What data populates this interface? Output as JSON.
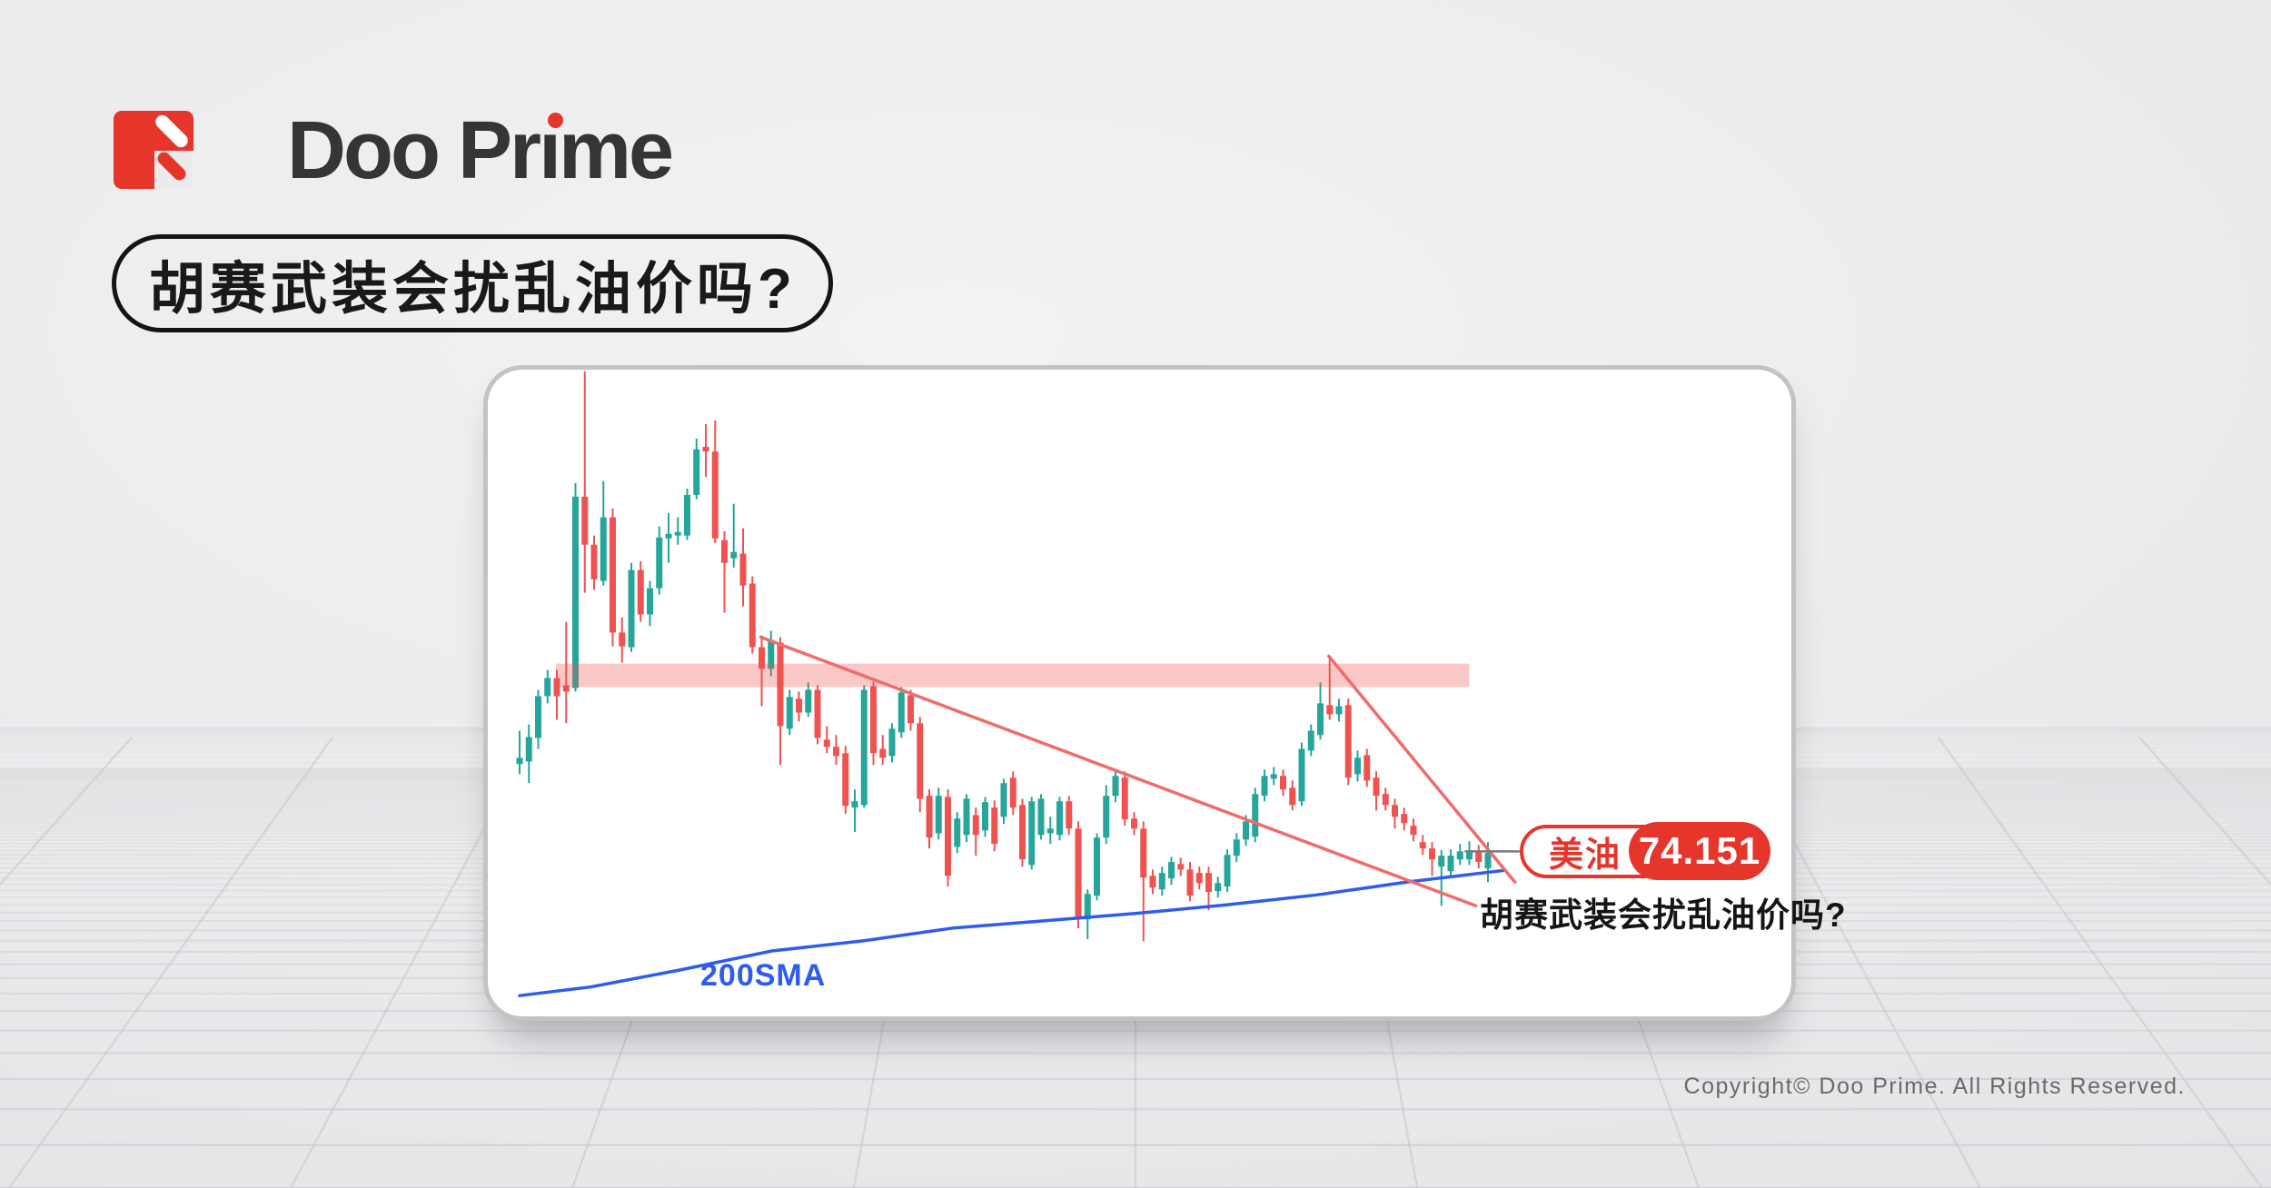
{
  "logo": {
    "brand": "Doo Prime",
    "mark_color": "#e6352b",
    "text_color": "#373435",
    "accent_dot": "#e6352b"
  },
  "headline": {
    "text": "胡赛武装会扰乱油价吗?"
  },
  "card": {
    "caption": "胡赛武装会扰乱油价吗?"
  },
  "footer": {
    "copyright": "Copyright© Doo Prime. All Rights Reserved."
  },
  "chart_data": {
    "type": "candlestick",
    "price_label": {
      "symbol": "美油",
      "value": "74.151"
    },
    "sma_label": "200SMA",
    "ylim": [
      68.48,
      90.94
    ],
    "grid": false,
    "colors": {
      "up": "#26a69a",
      "down": "#ef5350",
      "sma": "#2e5cf0",
      "trendline": "#f26b6b",
      "zone": "rgba(239,83,80,0.32)",
      "connector": "#7a7a7a"
    },
    "resistance_zone": {
      "price_top": 80.73,
      "price_bottom": 79.92,
      "index_start": 3.9,
      "index_end": 102
    },
    "trendlines": [
      {
        "i1": 25.9,
        "p1": 81.65,
        "i2": 102.7,
        "p2": 72.32
      },
      {
        "i1": 86.9,
        "p1": 80.99,
        "i2": 106.9,
        "p2": 73.14
      }
    ],
    "connector": {
      "i1": 101.5,
      "i2": 107.4,
      "price": 74.21
    },
    "sma200": [
      [
        0,
        69.2
      ],
      [
        7.6,
        69.5
      ],
      [
        17.4,
        70.1
      ],
      [
        27.1,
        70.75
      ],
      [
        36.9,
        71.1
      ],
      [
        46.6,
        71.55
      ],
      [
        56.4,
        71.8
      ],
      [
        66.1,
        72.05
      ],
      [
        75.9,
        72.35
      ],
      [
        85.7,
        72.7
      ],
      [
        95.4,
        73.15
      ],
      [
        105.7,
        73.55
      ]
    ],
    "candles": [
      [
        77.24,
        78.4,
        76.89,
        77.46
      ],
      [
        77.33,
        78.62,
        76.58,
        78.18
      ],
      [
        78.15,
        79.82,
        77.77,
        79.6
      ],
      [
        79.6,
        80.51,
        79.35,
        80.23
      ],
      [
        80.23,
        80.51,
        78.78,
        79.6
      ],
      [
        79.98,
        82.18,
        78.66,
        79.76
      ],
      [
        79.88,
        87.0,
        79.76,
        86.53
      ],
      [
        86.53,
        90.88,
        83.19,
        84.86
      ],
      [
        84.86,
        85.18,
        83.29,
        83.66
      ],
      [
        83.6,
        87.07,
        83.44,
        85.81
      ],
      [
        85.81,
        86.12,
        81.33,
        81.81
      ],
      [
        81.81,
        82.34,
        80.77,
        81.33
      ],
      [
        81.3,
        84.23,
        81.14,
        83.98
      ],
      [
        83.98,
        84.29,
        82.18,
        82.44
      ],
      [
        82.44,
        83.6,
        82.03,
        83.35
      ],
      [
        83.35,
        85.49,
        83.13,
        85.11
      ],
      [
        85.08,
        85.96,
        84.23,
        85.24
      ],
      [
        85.18,
        85.81,
        84.86,
        85.3
      ],
      [
        85.18,
        86.81,
        85.02,
        86.59
      ],
      [
        86.59,
        88.55,
        86.44,
        88.17
      ],
      [
        88.26,
        89.05,
        87.22,
        88.1
      ],
      [
        88.1,
        89.18,
        84.92,
        85.08
      ],
      [
        85.02,
        85.33,
        82.5,
        84.23
      ],
      [
        84.39,
        86.28,
        84.07,
        84.61
      ],
      [
        84.55,
        85.43,
        82.72,
        83.44
      ],
      [
        83.51,
        83.76,
        81.08,
        81.3
      ],
      [
        81.3,
        81.71,
        79.25,
        80.55
      ],
      [
        80.55,
        81.87,
        80.29,
        81.55
      ],
      [
        81.46,
        81.65,
        77.21,
        78.56
      ],
      [
        78.47,
        79.82,
        78.25,
        79.57
      ],
      [
        79.51,
        79.76,
        78.72,
        79.03
      ],
      [
        79.03,
        80.08,
        78.88,
        79.82
      ],
      [
        79.82,
        79.98,
        77.93,
        78.15
      ],
      [
        78.09,
        78.56,
        77.62,
        77.84
      ],
      [
        77.84,
        78.25,
        77.21,
        77.52
      ],
      [
        77.62,
        77.87,
        75.51,
        75.79
      ],
      [
        75.73,
        76.36,
        74.88,
        75.95
      ],
      [
        75.82,
        79.98,
        75.73,
        79.82
      ],
      [
        79.95,
        80.11,
        77.21,
        77.62
      ],
      [
        77.77,
        78.25,
        77.21,
        77.46
      ],
      [
        77.52,
        78.66,
        77.3,
        78.47
      ],
      [
        78.34,
        79.92,
        78.15,
        79.73
      ],
      [
        79.63,
        79.82,
        78.4,
        78.66
      ],
      [
        78.66,
        78.88,
        75.57,
        76.04
      ],
      [
        76.14,
        76.36,
        74.31,
        74.69
      ],
      [
        74.84,
        76.42,
        74.62,
        76.14
      ],
      [
        76.1,
        76.36,
        72.99,
        73.36
      ],
      [
        74.37,
        75.57,
        74.15,
        75.35
      ],
      [
        74.78,
        76.2,
        74.53,
        76.04
      ],
      [
        75.47,
        75.73,
        74.06,
        74.78
      ],
      [
        74.94,
        76.1,
        74.72,
        75.92
      ],
      [
        75.73,
        75.98,
        74.21,
        74.47
      ],
      [
        75.41,
        76.73,
        75.16,
        76.58
      ],
      [
        76.77,
        76.99,
        75.47,
        75.73
      ],
      [
        75.82,
        76.04,
        73.68,
        73.93
      ],
      [
        73.74,
        76.1,
        73.58,
        75.95
      ],
      [
        74.78,
        76.2,
        74.62,
        76.04
      ],
      [
        74.84,
        75.41,
        74.47,
        75.0
      ],
      [
        74.78,
        76.1,
        74.59,
        75.95
      ],
      [
        75.95,
        76.14,
        74.78,
        75.0
      ],
      [
        75.0,
        75.25,
        71.54,
        71.85
      ],
      [
        71.85,
        72.89,
        71.16,
        72.73
      ],
      [
        72.67,
        74.84,
        72.51,
        74.69
      ],
      [
        74.69,
        76.51,
        74.47,
        76.14
      ],
      [
        76.14,
        77.08,
        75.92,
        76.83
      ],
      [
        76.77,
        76.99,
        75.1,
        75.32
      ],
      [
        75.35,
        75.57,
        74.78,
        75.0
      ],
      [
        75.0,
        75.25,
        71.09,
        73.3
      ],
      [
        73.36,
        73.58,
        72.73,
        72.95
      ],
      [
        72.89,
        73.68,
        72.67,
        73.46
      ],
      [
        73.27,
        74.02,
        73.05,
        73.84
      ],
      [
        73.77,
        73.99,
        73.36,
        73.58
      ],
      [
        73.58,
        73.84,
        72.48,
        72.67
      ],
      [
        73.46,
        73.68,
        72.89,
        73.11
      ],
      [
        73.46,
        73.68,
        72.17,
        72.8
      ],
      [
        72.83,
        73.33,
        72.61,
        73.11
      ],
      [
        72.99,
        74.28,
        72.8,
        74.09
      ],
      [
        74.06,
        74.84,
        73.84,
        74.62
      ],
      [
        74.62,
        75.47,
        74.4,
        75.25
      ],
      [
        74.72,
        76.42,
        74.53,
        76.2
      ],
      [
        76.14,
        77.05,
        75.95,
        76.83
      ],
      [
        76.73,
        77.14,
        76.51,
        76.89
      ],
      [
        76.83,
        77.05,
        76.14,
        76.36
      ],
      [
        76.42,
        76.67,
        75.63,
        75.82
      ],
      [
        75.95,
        77.99,
        75.79,
        77.77
      ],
      [
        77.71,
        78.62,
        77.52,
        78.4
      ],
      [
        78.25,
        80.08,
        78.09,
        79.35
      ],
      [
        79.29,
        80.99,
        78.78,
        78.97
      ],
      [
        78.97,
        79.51,
        78.72,
        79.25
      ],
      [
        79.29,
        79.51,
        76.51,
        76.77
      ],
      [
        76.89,
        77.71,
        76.64,
        77.46
      ],
      [
        77.55,
        77.77,
        76.45,
        76.67
      ],
      [
        76.77,
        76.99,
        75.63,
        76.14
      ],
      [
        76.2,
        76.42,
        75.63,
        75.82
      ],
      [
        75.82,
        76.04,
        75.0,
        75.41
      ],
      [
        75.51,
        75.73,
        74.94,
        75.19
      ],
      [
        75.1,
        75.35,
        74.56,
        74.78
      ],
      [
        74.53,
        74.78,
        74.09,
        74.31
      ],
      [
        74.31,
        74.53,
        73.36,
        73.93
      ],
      [
        73.68,
        74.25,
        72.32,
        74.06
      ],
      [
        73.52,
        74.28,
        73.33,
        74.06
      ],
      [
        73.93,
        74.47,
        73.74,
        74.21
      ],
      [
        73.93,
        74.56,
        73.74,
        74.25
      ],
      [
        74.21,
        74.43,
        73.62,
        73.84
      ],
      [
        73.62,
        74.53,
        73.14,
        74.151
      ]
    ]
  }
}
